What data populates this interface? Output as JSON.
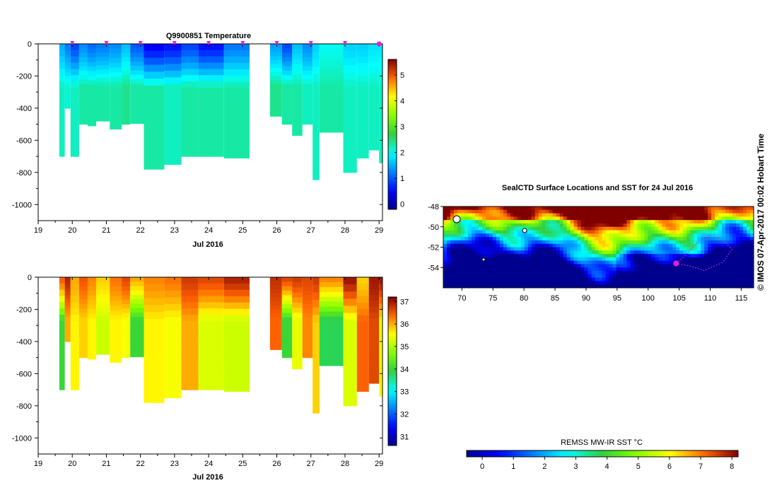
{
  "credit": "© IMOS 07-Apr-2017 00:02 Hobart Time",
  "colors": {
    "marker": "#e020e0",
    "track": "#cc33cc",
    "land": "#ffffff"
  },
  "chart_data": [
    {
      "type": "heatmap",
      "title": "Q9900851  Temperature",
      "xlabel": "Jul 2016",
      "ylabel": "",
      "xlim": [
        19,
        29.1
      ],
      "ylim": [
        -1100,
        0
      ],
      "x_ticks": [
        "19",
        "20",
        "21",
        "22",
        "23",
        "24",
        "25",
        "26",
        "27",
        "28",
        "29"
      ],
      "y_ticks": [
        "0",
        "-200",
        "-400",
        "-600",
        "-800",
        "-1000"
      ],
      "colorbar": {
        "range": [
          -0.2,
          5.6
        ],
        "ticks": [
          "0",
          "1",
          "2",
          "3",
          "4",
          "5"
        ]
      },
      "profile_times": [
        20,
        21,
        22,
        23,
        24,
        25,
        26,
        27,
        28,
        29
      ],
      "profiles": [
        {
          "x": [
            19.62,
            19.78
          ],
          "depth": 700,
          "surface": 1.5,
          "deep": 2.2
        },
        {
          "x": [
            19.78,
            19.95
          ],
          "depth": 400,
          "surface": 1.2,
          "deep": 2.1
        },
        {
          "x": [
            19.95,
            20.2
          ],
          "depth": 700,
          "surface": 0.9,
          "deep": 2.2
        },
        {
          "x": [
            20.2,
            20.45
          ],
          "depth": 500,
          "surface": 1.3,
          "deep": 2.3
        },
        {
          "x": [
            20.45,
            20.7
          ],
          "depth": 510,
          "surface": 1.1,
          "deep": 2.3
        },
        {
          "x": [
            20.7,
            21.1
          ],
          "depth": 480,
          "surface": 1.2,
          "deep": 2.3
        },
        {
          "x": [
            21.1,
            21.45
          ],
          "depth": 530,
          "surface": 1.3,
          "deep": 2.3
        },
        {
          "x": [
            21.45,
            21.7
          ],
          "depth": 500,
          "surface": 1.6,
          "deep": 2.4
        },
        {
          "x": [
            21.7,
            22.1
          ],
          "depth": 495,
          "surface": 1.0,
          "deep": 2.3
        },
        {
          "x": [
            22.1,
            22.7
          ],
          "depth": 780,
          "surface": 0.5,
          "deep": 2.3
        },
        {
          "x": [
            22.7,
            23.2
          ],
          "depth": 750,
          "surface": 0.6,
          "deep": 2.2
        },
        {
          "x": [
            23.2,
            23.7
          ],
          "depth": 700,
          "surface": 0.9,
          "deep": 2.3
        },
        {
          "x": [
            23.7,
            24.45
          ],
          "depth": 700,
          "surface": 0.6,
          "deep": 2.3
        },
        {
          "x": [
            24.45,
            25.2
          ],
          "depth": 710,
          "surface": 1.2,
          "deep": 2.3
        },
        {
          "x": [
            25.8,
            26.15
          ],
          "depth": 450,
          "surface": 1.4,
          "deep": 2.4
        },
        {
          "x": [
            26.15,
            26.45
          ],
          "depth": 500,
          "surface": 0.9,
          "deep": 2.3
        },
        {
          "x": [
            26.45,
            26.75
          ],
          "depth": 570,
          "surface": 1.6,
          "deep": 2.3
        },
        {
          "x": [
            26.75,
            27.05
          ],
          "depth": 500,
          "surface": 1.3,
          "deep": 2.2
        },
        {
          "x": [
            27.05,
            27.25
          ],
          "depth": 845,
          "surface": 1.7,
          "deep": 2.2
        },
        {
          "x": [
            27.25,
            27.95
          ],
          "depth": 550,
          "surface": 2.0,
          "deep": 2.3
        },
        {
          "x": [
            27.95,
            28.35
          ],
          "depth": 800,
          "surface": 1.7,
          "deep": 2.2
        },
        {
          "x": [
            28.35,
            28.7
          ],
          "depth": 710,
          "surface": 1.7,
          "deep": 2.2
        },
        {
          "x": [
            28.7,
            29.0
          ],
          "depth": 660,
          "surface": 1.8,
          "deep": 2.2
        },
        {
          "x": [
            29.0,
            29.1
          ],
          "depth": 740,
          "surface": 1.8,
          "deep": 2.2
        }
      ]
    },
    {
      "type": "heatmap",
      "title": "",
      "xlabel": "Jul 2016",
      "ylabel": "",
      "xlim": [
        19,
        29.1
      ],
      "ylim": [
        -1100,
        0
      ],
      "x_ticks": [
        "19",
        "20",
        "21",
        "22",
        "23",
        "24",
        "25",
        "26",
        "27",
        "28",
        "29"
      ],
      "y_ticks": [
        "0",
        "-200",
        "-400",
        "-600",
        "-800",
        "-1000"
      ],
      "colorbar": {
        "range": [
          30.6,
          37.2
        ],
        "ticks": [
          "31",
          "32",
          "33",
          "34",
          "35",
          "36",
          "37"
        ]
      },
      "profiles": [
        {
          "x": [
            19.62,
            19.78
          ],
          "depth": 700,
          "surface": 36.4,
          "deep": 34.0
        },
        {
          "x": [
            19.78,
            19.95
          ],
          "depth": 400,
          "surface": 36.9,
          "deep": 36.0
        },
        {
          "x": [
            19.95,
            20.2
          ],
          "depth": 700,
          "surface": 36.0,
          "deep": 35.6
        },
        {
          "x": [
            20.2,
            20.45
          ],
          "depth": 500,
          "surface": 36.5,
          "deep": 35.8
        },
        {
          "x": [
            20.45,
            20.7
          ],
          "depth": 510,
          "surface": 36.2,
          "deep": 35.6
        },
        {
          "x": [
            20.7,
            21.1
          ],
          "depth": 480,
          "surface": 35.8,
          "deep": 35.2
        },
        {
          "x": [
            21.1,
            21.45
          ],
          "depth": 530,
          "surface": 36.3,
          "deep": 35.6
        },
        {
          "x": [
            21.45,
            21.7
          ],
          "depth": 500,
          "surface": 36.6,
          "deep": 35.5
        },
        {
          "x": [
            21.7,
            22.1
          ],
          "depth": 495,
          "surface": 36.0,
          "deep": 34.0
        },
        {
          "x": [
            22.1,
            22.7
          ],
          "depth": 780,
          "surface": 36.2,
          "deep": 35.6
        },
        {
          "x": [
            22.7,
            23.2
          ],
          "depth": 750,
          "surface": 36.3,
          "deep": 35.5
        },
        {
          "x": [
            23.2,
            23.7
          ],
          "depth": 700,
          "surface": 36.7,
          "deep": 36.0
        },
        {
          "x": [
            23.7,
            24.45
          ],
          "depth": 700,
          "surface": 36.6,
          "deep": 35.3
        },
        {
          "x": [
            24.45,
            25.2
          ],
          "depth": 710,
          "surface": 36.9,
          "deep": 35.2
        },
        {
          "x": [
            25.8,
            26.15
          ],
          "depth": 450,
          "surface": 36.8,
          "deep": 36.4
        },
        {
          "x": [
            26.15,
            26.45
          ],
          "depth": 500,
          "surface": 36.6,
          "deep": 34.0
        },
        {
          "x": [
            26.45,
            26.75
          ],
          "depth": 570,
          "surface": 36.7,
          "deep": 35.4
        },
        {
          "x": [
            26.75,
            27.05
          ],
          "depth": 500,
          "surface": 36.6,
          "deep": 36.2
        },
        {
          "x": [
            27.05,
            27.25
          ],
          "depth": 845,
          "surface": 36.7,
          "deep": 35.8
        },
        {
          "x": [
            27.25,
            27.95
          ],
          "depth": 550,
          "surface": 36.2,
          "deep": 33.8
        },
        {
          "x": [
            27.95,
            28.35
          ],
          "depth": 800,
          "surface": 37.0,
          "deep": 35.3
        },
        {
          "x": [
            28.35,
            28.7
          ],
          "depth": 710,
          "surface": 35.8,
          "deep": 36.4
        },
        {
          "x": [
            28.7,
            29.0
          ],
          "depth": 660,
          "surface": 37.0,
          "deep": 36.6
        },
        {
          "x": [
            29.0,
            29.1
          ],
          "depth": 740,
          "surface": 37.0,
          "deep": 35.5
        }
      ]
    },
    {
      "type": "heatmap",
      "title": "SealCTD Surface Locations and SST for 24 Jul 2016",
      "xlabel": "",
      "ylabel": "",
      "xlim": [
        67,
        117
      ],
      "ylim": [
        -56,
        -48
      ],
      "x_ticks": [
        "70",
        "75",
        "80",
        "85",
        "90",
        "95",
        "100",
        "105",
        "110",
        "115"
      ],
      "y_ticks": [
        "-48",
        "-50",
        "-52",
        "-54"
      ],
      "colorbar": {
        "label": "REMSS MW-IR SST °C",
        "range": [
          -0.5,
          8.2
        ],
        "ticks": [
          "0",
          "1",
          "2",
          "3",
          "4",
          "5",
          "6",
          "7",
          "8"
        ]
      },
      "current_location": [
        104.5,
        -53.6
      ],
      "track": [
        [
          104.5,
          -53.6
        ],
        [
          106,
          -52.8
        ],
        [
          108,
          -51.5
        ],
        [
          110,
          -50.8
        ],
        [
          112,
          -51.3
        ],
        [
          113.5,
          -52.2
        ],
        [
          112,
          -53.5
        ],
        [
          109,
          -54.3
        ],
        [
          107,
          -53.9
        ],
        [
          104.5,
          -53.6
        ]
      ]
    }
  ]
}
